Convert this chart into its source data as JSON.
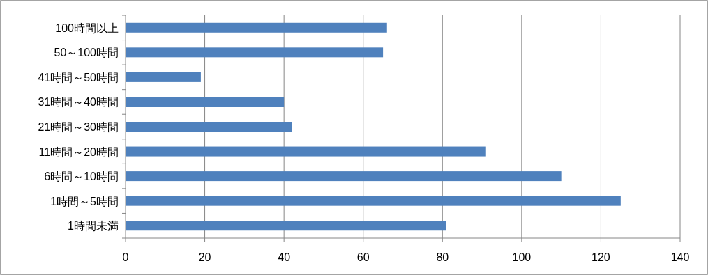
{
  "chart_data": {
    "type": "bar",
    "orientation": "horizontal",
    "categories": [
      "100時間以上",
      "50～100時間",
      "41時間～50時間",
      "31時間～40時間",
      "21時間～30時間",
      "11時間～20時間",
      "6時間～10時間",
      "1時間～5時間",
      "1時間未満"
    ],
    "values": [
      66,
      65,
      19,
      40,
      42,
      91,
      110,
      125,
      81
    ],
    "color": "#4f81bd",
    "xlim": [
      0,
      140
    ],
    "xticks": [
      0,
      20,
      40,
      60,
      80,
      100,
      120,
      140
    ],
    "grid": "x"
  }
}
